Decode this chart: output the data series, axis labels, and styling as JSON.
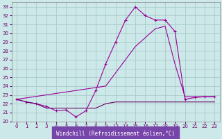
{
  "bg_color": "#cce8e8",
  "grid_color": "#aacccc",
  "line_color": "#990099",
  "xlabel": "Windchill (Refroidissement éolien,°C)",
  "xlim": [
    -0.5,
    20.5
  ],
  "ylim": [
    20,
    33.5
  ],
  "ytick_labels": [
    "20",
    "21",
    "22",
    "23",
    "24",
    "25",
    "26",
    "27",
    "28",
    "29",
    "30",
    "31",
    "32",
    "33"
  ],
  "ytick_vals": [
    20,
    21,
    22,
    23,
    24,
    25,
    26,
    27,
    28,
    29,
    30,
    31,
    32,
    33
  ],
  "xtick_positions": [
    0,
    1,
    2,
    3,
    4,
    5,
    6,
    7,
    8,
    9,
    10,
    11,
    12,
    13,
    14,
    15,
    16,
    17,
    18,
    19,
    20
  ],
  "xtick_labels": [
    "0",
    "1",
    "2",
    "3",
    "4",
    "5",
    "6",
    "7",
    "8",
    "9",
    "13",
    "14",
    "15",
    "16",
    "17",
    "18",
    "19",
    "20",
    "21",
    "22",
    "23"
  ],
  "line1_x": [
    0,
    1,
    2,
    3,
    4,
    5,
    6,
    7,
    8,
    9,
    10,
    11,
    12,
    13,
    14,
    15,
    16,
    17,
    18,
    19,
    20
  ],
  "line1_y": [
    22.5,
    22.2,
    22.0,
    21.7,
    21.2,
    21.3,
    20.5,
    21.2,
    23.5,
    26.5,
    29.0,
    31.5,
    33.0,
    32.0,
    31.5,
    31.5,
    30.2,
    22.5,
    22.7,
    22.8,
    22.8
  ],
  "line2_x": [
    0,
    1,
    2,
    3,
    4,
    5,
    6,
    7,
    8,
    9,
    10,
    11,
    12,
    13,
    14,
    15,
    16,
    17,
    18,
    19,
    20
  ],
  "line2_y": [
    22.5,
    22.2,
    22.0,
    21.5,
    21.5,
    21.5,
    21.5,
    21.5,
    21.5,
    22.0,
    22.2,
    22.2,
    22.2,
    22.2,
    22.2,
    22.2,
    22.2,
    22.2,
    22.2,
    22.2,
    22.2
  ],
  "line3_x": [
    0,
    9,
    10,
    11,
    12,
    13,
    14,
    15,
    16,
    17,
    18,
    19,
    20
  ],
  "line3_y": [
    22.5,
    24.0,
    25.5,
    27.0,
    28.5,
    29.5,
    30.5,
    30.8,
    26.5,
    22.8,
    22.8,
    22.8,
    22.8
  ],
  "xlabel_bg": "#7744aa",
  "xlabel_fg": "#ffffff"
}
